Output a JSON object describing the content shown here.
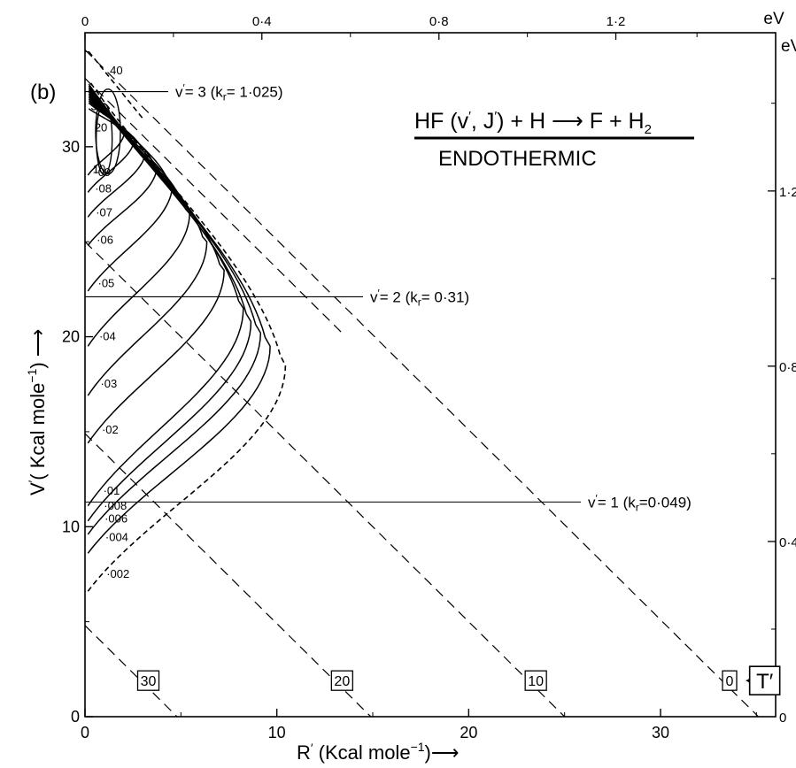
{
  "panel_label": "(b)",
  "title": {
    "line1_parts": [
      "HF (v",
      "′",
      ", J",
      "′",
      ") + H ⟶ F + H",
      "2"
    ],
    "line2": "ENDOTHERMIC"
  },
  "chart_data": {
    "type": "contour",
    "xlabel_parts": [
      "R",
      "′",
      " (Kcal  mole",
      "−1",
      ")⟶"
    ],
    "ylabel_parts": [
      "V",
      "′",
      "( Kcal  mole",
      "−1",
      ") ⟶"
    ],
    "xlim": [
      0,
      36
    ],
    "ylim": [
      0,
      36
    ],
    "x_ticks": [
      "0",
      "10",
      "20",
      "30"
    ],
    "x_tick_values": [
      0,
      10,
      20,
      30
    ],
    "y_ticks": [
      "0",
      "10",
      "20",
      "30"
    ],
    "y_tick_values": [
      0,
      10,
      20,
      30
    ],
    "top_axis": {
      "unit": "eV",
      "ticks": [
        "0",
        "0·4",
        "0·8",
        "1·2"
      ],
      "tick_values_kcal": [
        0,
        9.22,
        18.45,
        27.67
      ]
    },
    "right_axis": {
      "unit": "eV",
      "ticks": [
        "0·4",
        "0·8",
        "1·2"
      ],
      "tick_values_kcal": [
        9.22,
        18.45,
        27.67
      ]
    },
    "vibrational_levels": [
      {
        "label_parts": [
          "v",
          "′",
          "= 3  (k",
          "r",
          "= 1·025)"
        ],
        "energy": 32.9
      },
      {
        "label_parts": [
          "v",
          "′",
          "= 2  (k",
          "r",
          "= 0·31)"
        ],
        "energy": 22.1
      },
      {
        "label_parts": [
          "v",
          "′",
          "= 1  (k",
          "r",
          "=0·049)"
        ],
        "energy": 11.3
      }
    ],
    "rotational_diagonals": [
      {
        "label": "30",
        "total_energy": 4.8
      },
      {
        "label": "20",
        "total_energy": 14.9
      },
      {
        "label": "10",
        "total_energy": 25.0
      },
      {
        "label": "0",
        "total_energy": 35.1
      }
    ],
    "rotational_label": "T′",
    "j_labels": [
      {
        "text": "40",
        "x": 1.3,
        "y": 34.0
      },
      {
        "text": "30",
        "x": 0.3,
        "y": 32.1
      },
      {
        "text": "20",
        "x": 0.5,
        "y": 31.0
      },
      {
        "text": "10",
        "x": 0.4,
        "y": 28.8
      }
    ],
    "contours": [
      {
        "label": "·09",
        "ylo": 28.5,
        "yhi": 32.0,
        "xmax": 1.9,
        "ymid": 30.8,
        "dashed": false
      },
      {
        "label": "·08",
        "ylo": 27.6,
        "yhi": 32.3,
        "xmax": 2.4,
        "ymid": 30.4,
        "dashed": false
      },
      {
        "label": "·07",
        "ylo": 26.3,
        "yhi": 32.4,
        "xmax": 3.0,
        "ymid": 29.8,
        "dashed": false
      },
      {
        "label": "·06",
        "ylo": 24.8,
        "yhi": 32.5,
        "xmax": 3.6,
        "ymid": 29.0,
        "dashed": false
      },
      {
        "label": "·05",
        "ylo": 22.4,
        "yhi": 32.6,
        "xmax": 4.4,
        "ymid": 28.0,
        "dashed": false
      },
      {
        "label": "·04",
        "ylo": 19.5,
        "yhi": 32.7,
        "xmax": 5.3,
        "ymid": 26.5,
        "dashed": false
      },
      {
        "label": "·03",
        "ylo": 16.9,
        "yhi": 32.8,
        "xmax": 6.2,
        "ymid": 25.0,
        "dashed": false
      },
      {
        "label": "·02",
        "ylo": 14.4,
        "yhi": 32.9,
        "xmax": 7.1,
        "ymid": 23.5,
        "dashed": false
      },
      {
        "label": "·01",
        "ylo": 11.1,
        "yhi": 33.0,
        "xmax": 8.1,
        "ymid": 21.5,
        "dashed": false
      },
      {
        "label": "·008",
        "ylo": 10.3,
        "yhi": 33.1,
        "xmax": 8.5,
        "ymid": 20.8,
        "dashed": false
      },
      {
        "label": "·006",
        "ylo": 9.6,
        "yhi": 33.2,
        "xmax": 9.0,
        "ymid": 20.2,
        "dashed": false
      },
      {
        "label": "·004",
        "ylo": 8.6,
        "yhi": 33.3,
        "xmax": 9.5,
        "ymid": 19.5,
        "dashed": false
      },
      {
        "label": "·002",
        "ylo": 6.6,
        "yhi": 33.5,
        "xmax": 10.3,
        "ymid": 18.5,
        "dashed": true
      }
    ]
  }
}
